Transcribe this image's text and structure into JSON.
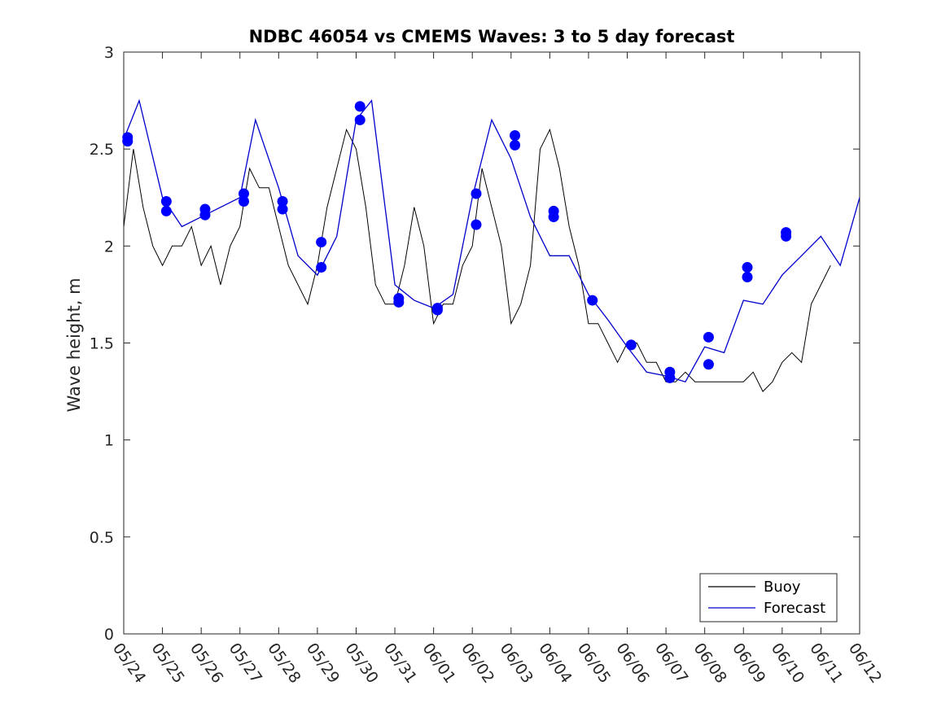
{
  "chart_data": {
    "type": "line",
    "title": "NDBC 46054 vs CMEMS Waves: 3 to 5 day forecast",
    "xlabel": "",
    "ylabel": "Wave height, m",
    "x_ticks": [
      "05/24",
      "05/25",
      "05/26",
      "05/27",
      "05/28",
      "05/29",
      "05/30",
      "05/31",
      "06/01",
      "06/02",
      "06/03",
      "06/04",
      "06/05",
      "06/06",
      "06/07",
      "06/08",
      "06/09",
      "06/10",
      "06/11",
      "06/12"
    ],
    "x_range_days": [
      0,
      19
    ],
    "y_ticks": [
      "0",
      "0.5",
      "1",
      "1.5",
      "2",
      "2.5",
      "3"
    ],
    "ylim": [
      0,
      3
    ],
    "grid": false,
    "legend": {
      "placement": "bottom-right",
      "entries": [
        "Buoy",
        "Forecast"
      ]
    },
    "colors": {
      "buoy": "#000000",
      "forecast": "#0000cc",
      "marker": "#0000ff"
    },
    "series": [
      {
        "name": "Buoy",
        "x": [
          0,
          0.25,
          0.5,
          0.75,
          1,
          1.25,
          1.5,
          1.75,
          2,
          2.25,
          2.5,
          2.75,
          3,
          3.25,
          3.5,
          3.75,
          4,
          4.25,
          4.5,
          4.75,
          5,
          5.25,
          5.5,
          5.75,
          6,
          6.25,
          6.5,
          6.75,
          7,
          7.25,
          7.5,
          7.75,
          8,
          8.25,
          8.5,
          8.75,
          9,
          9.25,
          9.5,
          9.75,
          10,
          10.25,
          10.5,
          10.75,
          11,
          11.25,
          11.5,
          11.75,
          12,
          12.25,
          12.5,
          12.75,
          13,
          13.25,
          13.5,
          13.75,
          14,
          14.25,
          14.5,
          14.75,
          15,
          15.25,
          15.5,
          15.75,
          16,
          16.25,
          16.5,
          16.75,
          17,
          17.25,
          17.5,
          17.75,
          18,
          18.25
        ],
        "values": [
          2.1,
          2.5,
          2.2,
          2.0,
          1.9,
          2.0,
          2.0,
          2.1,
          1.9,
          2.0,
          1.8,
          2.0,
          2.1,
          2.4,
          2.3,
          2.3,
          2.1,
          1.9,
          1.8,
          1.7,
          1.9,
          2.2,
          2.4,
          2.6,
          2.5,
          2.2,
          1.8,
          1.7,
          1.7,
          1.9,
          2.2,
          2.0,
          1.6,
          1.7,
          1.7,
          1.9,
          2.0,
          2.4,
          2.2,
          2.0,
          1.6,
          1.7,
          1.9,
          2.5,
          2.6,
          2.4,
          2.1,
          1.9,
          1.6,
          1.6,
          1.5,
          1.4,
          1.5,
          1.5,
          1.4,
          1.4,
          1.3,
          1.3,
          1.35,
          1.3,
          1.3,
          1.3,
          1.3,
          1.3,
          1.3,
          1.35,
          1.25,
          1.3,
          1.4,
          1.45,
          1.4,
          1.7,
          1.8,
          1.9
        ]
      },
      {
        "name": "Forecast",
        "x": [
          0,
          0.4,
          1,
          1.5,
          2,
          2.5,
          3,
          3.4,
          4,
          4.5,
          5,
          5.5,
          6,
          6.4,
          7,
          7.5,
          8,
          8.5,
          9,
          9.5,
          10,
          10.5,
          11,
          11.5,
          12,
          12.5,
          13,
          13.5,
          14,
          14.5,
          15,
          15.5,
          16,
          16.5,
          17,
          17.5,
          18,
          18.5,
          19
        ],
        "values": [
          2.55,
          2.75,
          2.25,
          2.1,
          2.15,
          2.2,
          2.25,
          2.65,
          2.3,
          1.95,
          1.85,
          2.05,
          2.65,
          2.75,
          1.8,
          1.72,
          1.68,
          1.75,
          2.25,
          2.65,
          2.45,
          2.15,
          1.95,
          1.95,
          1.75,
          1.62,
          1.48,
          1.35,
          1.33,
          1.3,
          1.48,
          1.45,
          1.72,
          1.7,
          1.85,
          1.95,
          2.05,
          1.9,
          2.25
        ]
      }
    ],
    "markers": [
      {
        "x": 0.1,
        "y": 2.54
      },
      {
        "x": 0.1,
        "y": 2.56
      },
      {
        "x": 1.1,
        "y": 2.23
      },
      {
        "x": 1.1,
        "y": 2.18
      },
      {
        "x": 2.1,
        "y": 2.19
      },
      {
        "x": 2.1,
        "y": 2.16
      },
      {
        "x": 3.1,
        "y": 2.27
      },
      {
        "x": 3.1,
        "y": 2.23
      },
      {
        "x": 4.1,
        "y": 2.23
      },
      {
        "x": 4.1,
        "y": 2.19
      },
      {
        "x": 5.1,
        "y": 2.02
      },
      {
        "x": 5.1,
        "y": 1.89
      },
      {
        "x": 6.1,
        "y": 2.72
      },
      {
        "x": 6.1,
        "y": 2.65
      },
      {
        "x": 7.1,
        "y": 1.73
      },
      {
        "x": 7.1,
        "y": 1.71
      },
      {
        "x": 8.1,
        "y": 1.68
      },
      {
        "x": 8.1,
        "y": 1.67
      },
      {
        "x": 9.1,
        "y": 2.27
      },
      {
        "x": 9.1,
        "y": 2.11
      },
      {
        "x": 10.1,
        "y": 2.57
      },
      {
        "x": 10.1,
        "y": 2.52
      },
      {
        "x": 11.1,
        "y": 2.18
      },
      {
        "x": 11.1,
        "y": 2.15
      },
      {
        "x": 12.1,
        "y": 1.72
      },
      {
        "x": 13.1,
        "y": 1.49
      },
      {
        "x": 14.1,
        "y": 1.35
      },
      {
        "x": 14.1,
        "y": 1.32
      },
      {
        "x": 15.1,
        "y": 1.53
      },
      {
        "x": 15.1,
        "y": 1.39
      },
      {
        "x": 16.1,
        "y": 1.89
      },
      {
        "x": 16.1,
        "y": 1.84
      },
      {
        "x": 17.1,
        "y": 2.07
      },
      {
        "x": 17.1,
        "y": 2.05
      }
    ]
  }
}
